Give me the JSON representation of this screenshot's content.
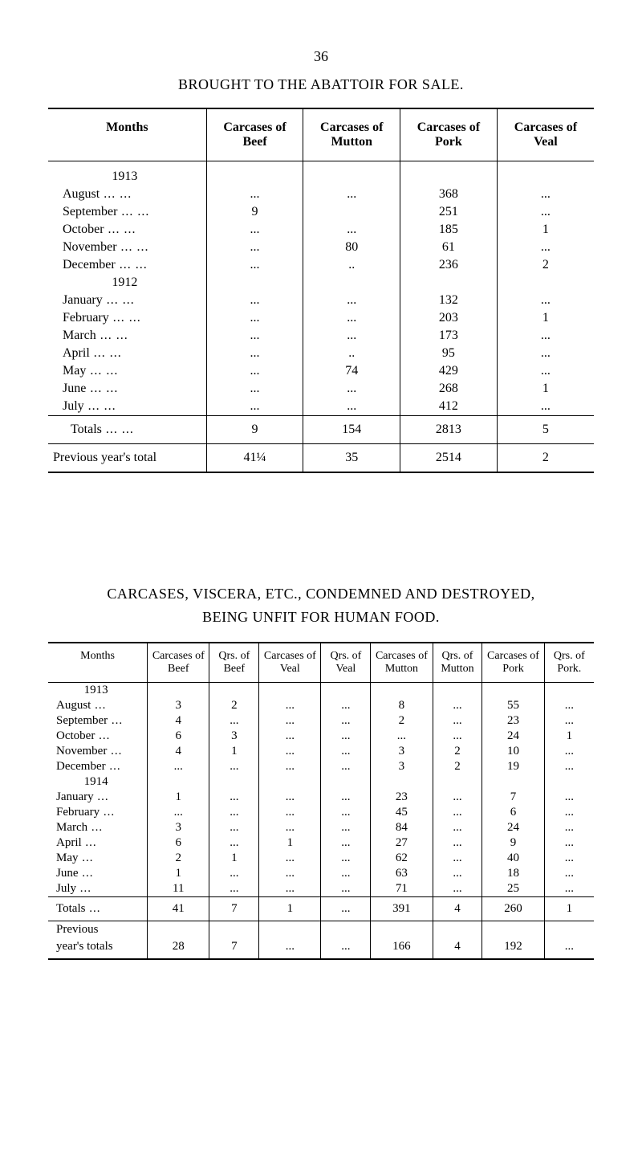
{
  "page_number": "36",
  "table1": {
    "title": "BROUGHT TO THE ABATTOIR FOR SALE.",
    "headers": [
      "Months",
      "Carcases of Beef",
      "Carcases of Mutton",
      "Carcases of Pork",
      "Carcases of Veal"
    ],
    "rows": [
      {
        "type": "year",
        "label": "1913",
        "v": [
          "",
          "",
          "",
          ""
        ]
      },
      {
        "type": "month",
        "label": "August",
        "v": [
          "...",
          "...",
          "368",
          "..."
        ]
      },
      {
        "type": "month",
        "label": "September",
        "v": [
          "9",
          "",
          "251",
          "..."
        ]
      },
      {
        "type": "month",
        "label": "October",
        "v": [
          "...",
          "...",
          "185",
          "1"
        ]
      },
      {
        "type": "month",
        "label": "November",
        "v": [
          "...",
          "80",
          "61",
          "..."
        ]
      },
      {
        "type": "month",
        "label": "December",
        "v": [
          "...",
          "..",
          "236",
          "2"
        ]
      },
      {
        "type": "year",
        "label": "1912",
        "v": [
          "",
          "",
          "",
          ""
        ]
      },
      {
        "type": "month",
        "label": "January",
        "v": [
          "...",
          "...",
          "132",
          "..."
        ]
      },
      {
        "type": "month",
        "label": "February",
        "v": [
          "...",
          "...",
          "203",
          "1"
        ]
      },
      {
        "type": "month",
        "label": "March",
        "v": [
          "...",
          "...",
          "173",
          "..."
        ]
      },
      {
        "type": "month",
        "label": "April",
        "v": [
          "...",
          "..",
          "95",
          "..."
        ]
      },
      {
        "type": "month",
        "label": "May",
        "v": [
          "...",
          "74",
          "429",
          "..."
        ]
      },
      {
        "type": "month",
        "label": "June",
        "v": [
          "...",
          "...",
          "268",
          "1"
        ]
      },
      {
        "type": "month",
        "label": "July",
        "v": [
          "...",
          "...",
          "412",
          "..."
        ]
      }
    ],
    "totals": {
      "label": "Totals",
      "v": [
        "9",
        "154",
        "2813",
        "5"
      ]
    },
    "previous": {
      "label": "Previous year's total",
      "v": [
        "41¼",
        "35",
        "2514",
        "2"
      ]
    }
  },
  "table2": {
    "title_line1": "CARCASES, VISCERA, ETC., CONDEMNED AND DESTROYED,",
    "title_line2": "BEING UNFIT FOR HUMAN FOOD.",
    "headers": [
      "Months",
      "Carcases of Beef",
      "Qrs. of Beef",
      "Carcases of Veal",
      "Qrs. of Veal",
      "Carcases of Mutton",
      "Qrs. of Mutton",
      "Carcases of Pork",
      "Qrs. of Pork."
    ],
    "rows": [
      {
        "type": "year",
        "label": "1913",
        "v": [
          "",
          "",
          "",
          "",
          "",
          "",
          "",
          ""
        ]
      },
      {
        "type": "month",
        "label": "August",
        "v": [
          "3",
          "2",
          "...",
          "...",
          "8",
          "...",
          "55",
          "..."
        ]
      },
      {
        "type": "month",
        "label": "September",
        "v": [
          "4",
          "...",
          "...",
          "...",
          "2",
          "...",
          "23",
          "..."
        ]
      },
      {
        "type": "month",
        "label": "October",
        "v": [
          "6",
          "3",
          "...",
          "...",
          "...",
          "...",
          "24",
          "1"
        ]
      },
      {
        "type": "month",
        "label": "November",
        "v": [
          "4",
          "1",
          "...",
          "...",
          "3",
          "2",
          "10",
          "..."
        ]
      },
      {
        "type": "month",
        "label": "December",
        "v": [
          "...",
          "...",
          "...",
          "...",
          "3",
          "2",
          "19",
          "..."
        ]
      },
      {
        "type": "year",
        "label": "1914",
        "v": [
          "",
          "",
          "",
          "",
          "",
          "",
          "",
          ""
        ]
      },
      {
        "type": "month",
        "label": "January",
        "v": [
          "1",
          "...",
          "...",
          "...",
          "23",
          "...",
          "7",
          "..."
        ]
      },
      {
        "type": "month",
        "label": "February",
        "v": [
          "...",
          "...",
          "...",
          "...",
          "45",
          "...",
          "6",
          "..."
        ]
      },
      {
        "type": "month",
        "label": "March",
        "v": [
          "3",
          "...",
          "...",
          "...",
          "84",
          "...",
          "24",
          "..."
        ]
      },
      {
        "type": "month",
        "label": "April",
        "v": [
          "6",
          "...",
          "1",
          "...",
          "27",
          "...",
          "9",
          "..."
        ]
      },
      {
        "type": "month",
        "label": "May",
        "v": [
          "2",
          "1",
          "...",
          "...",
          "62",
          "...",
          "40",
          "..."
        ]
      },
      {
        "type": "month",
        "label": "June",
        "v": [
          "1",
          "...",
          "...",
          "...",
          "63",
          "...",
          "18",
          "..."
        ]
      },
      {
        "type": "month",
        "label": "July",
        "v": [
          "11",
          "...",
          "...",
          "...",
          "71",
          "...",
          "25",
          "..."
        ]
      }
    ],
    "totals": {
      "label": "Totals",
      "v": [
        "41",
        "7",
        "1",
        "...",
        "391",
        "4",
        "260",
        "1"
      ]
    },
    "previous": {
      "label1": "Previous",
      "label2": "year's totals",
      "v": [
        "28",
        "7",
        "...",
        "...",
        "166",
        "4",
        "192",
        "..."
      ]
    }
  }
}
